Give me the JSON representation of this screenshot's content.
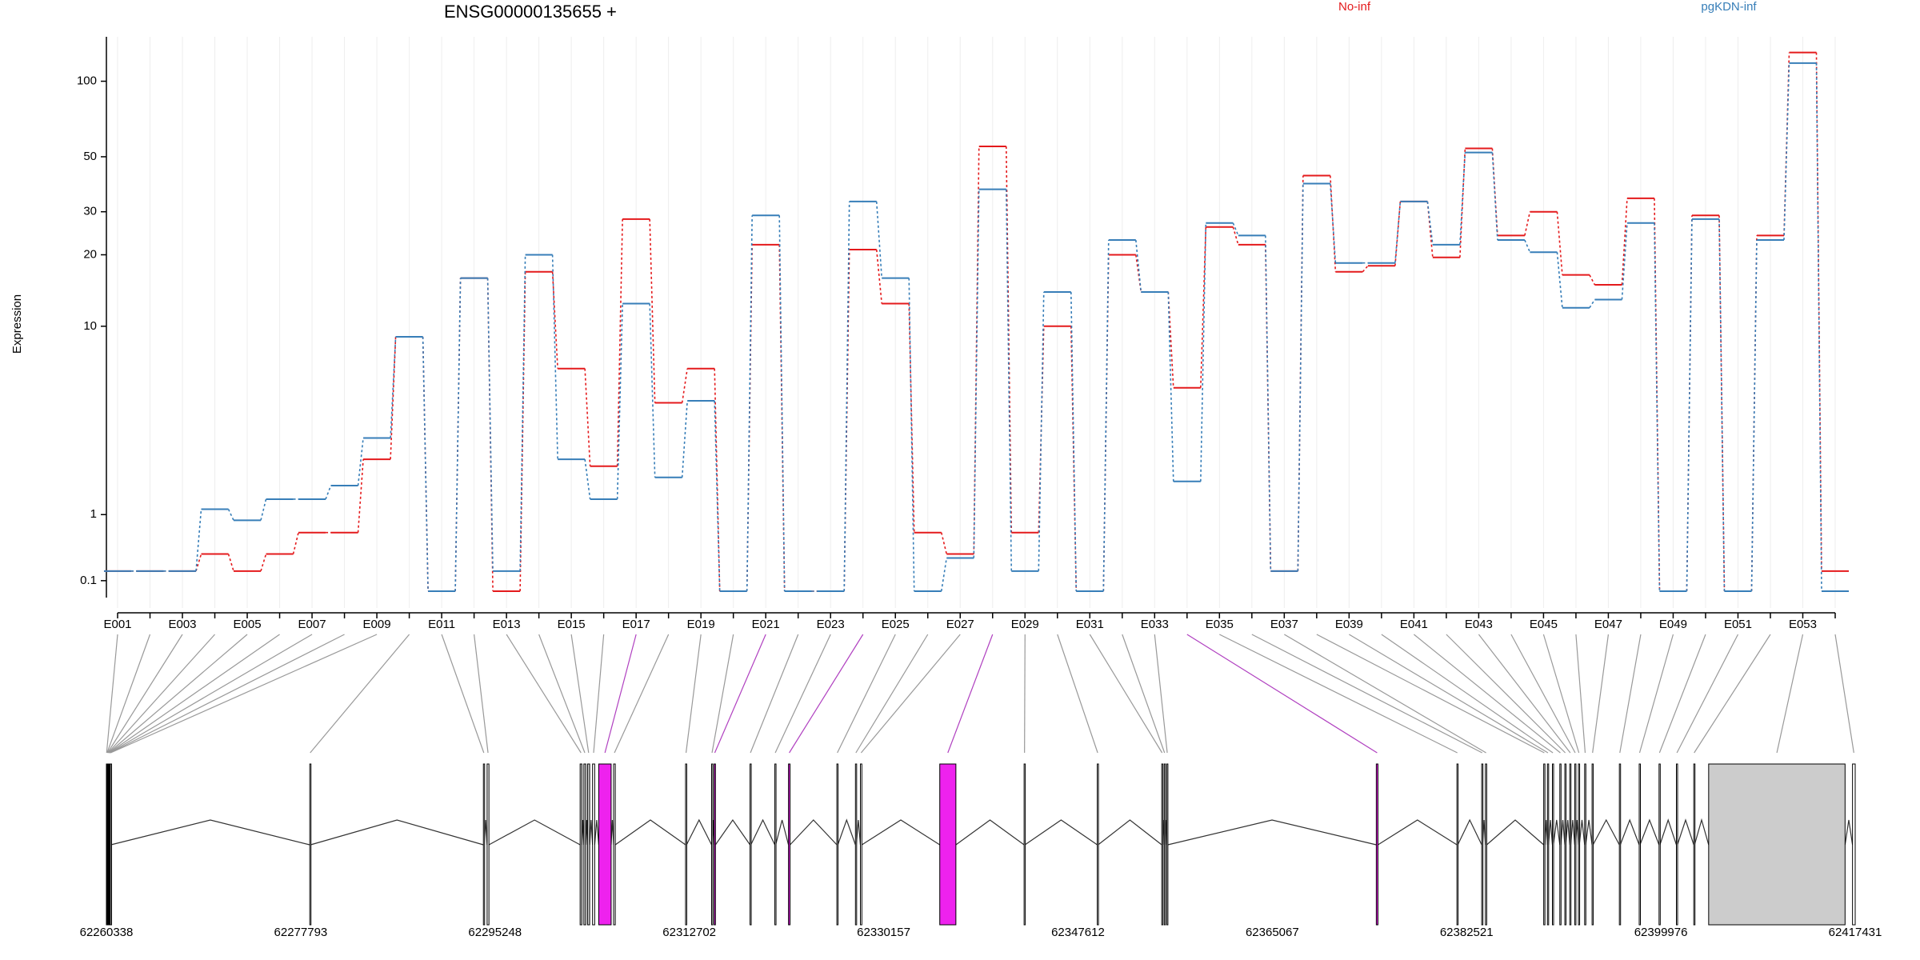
{
  "chart_data": {
    "type": "line",
    "title": "ENSG00000135655 +",
    "ylabel": "Expression",
    "yscale": "log1p",
    "grid": true,
    "categories": [
      "E001",
      null,
      "E003",
      null,
      "E005",
      null,
      "E007",
      null,
      "E009",
      null,
      "E011",
      null,
      "E013",
      null,
      "E015",
      null,
      "E017",
      null,
      "E019",
      null,
      "E021",
      null,
      "E023",
      null,
      "E025",
      null,
      "E027",
      null,
      "E029",
      null,
      "E031",
      null,
      "E033",
      null,
      "E035",
      null,
      "E037",
      null,
      "E039",
      null,
      "E041",
      null,
      "E043",
      null,
      "E045",
      null,
      "E047",
      null,
      "E049",
      null,
      "E051",
      null,
      "E053",
      null
    ],
    "series": [
      {
        "name": "No-inf",
        "color": "#e41a1c",
        "values": [
          0.2,
          0.2,
          0.2,
          0.4,
          0.2,
          0.4,
          0.7,
          0.7,
          2.3,
          9,
          0,
          16,
          0,
          17,
          6.5,
          2.1,
          28,
          4.5,
          6.5,
          0,
          22,
          0,
          0,
          21,
          12.5,
          0.7,
          0.4,
          55,
          0.7,
          10,
          0,
          20,
          14,
          5.3,
          26,
          22,
          0.2,
          42,
          17,
          18,
          33,
          19.5,
          54,
          24,
          30,
          16.5,
          15,
          34,
          0,
          29,
          0,
          24,
          130,
          0.2
        ]
      },
      {
        "name": "pgKDN-inf",
        "color": "#377eb8",
        "values": [
          0.2,
          0.2,
          0.2,
          1.1,
          0.9,
          1.3,
          1.3,
          1.6,
          3.0,
          9,
          0,
          16,
          0.2,
          20,
          2.3,
          1.3,
          12.5,
          1.8,
          4.6,
          0,
          29,
          0,
          0,
          33,
          16,
          0,
          0.35,
          37,
          0.2,
          14,
          0,
          23,
          14,
          1.7,
          27,
          24,
          0.2,
          39,
          18.5,
          18.5,
          33,
          22,
          52,
          23,
          20.5,
          12,
          13,
          27,
          0,
          28,
          0,
          23,
          118,
          0
        ]
      }
    ],
    "ylim": [
      0,
      150
    ],
    "yticks": [
      0.1,
      1,
      10,
      20,
      30,
      50,
      100
    ],
    "gene_model": {
      "xlim": [
        62260338,
        62417431
      ],
      "xticks": [
        62260338,
        62277793,
        62295248,
        62312702,
        62330157,
        62347612,
        62365067,
        62382521,
        62399976,
        62417431
      ],
      "exons": [
        {
          "start": 62260338,
          "end": 62260380,
          "color": "#ffffff"
        },
        {
          "start": 62260383,
          "end": 62260425,
          "color": "#ffffff"
        },
        {
          "start": 62260428,
          "end": 62260470,
          "color": "#ffffff"
        },
        {
          "start": 62260473,
          "end": 62260515,
          "color": "#ffffff"
        },
        {
          "start": 62260518,
          "end": 62260560,
          "color": "#ffffff"
        },
        {
          "start": 62260563,
          "end": 62260605,
          "color": "#ffffff"
        },
        {
          "start": 62260608,
          "end": 62260650,
          "color": "#ffffff"
        },
        {
          "start": 62260653,
          "end": 62260695,
          "color": "#ffffff"
        },
        {
          "start": 62260698,
          "end": 62260740,
          "color": "#ffffff"
        },
        {
          "start": 62278608,
          "end": 62278680,
          "color": "#ffffff"
        },
        {
          "start": 62294204,
          "end": 62294280,
          "color": "#ffffff"
        },
        {
          "start": 62294538,
          "end": 62294700,
          "color": "#ffffff"
        },
        {
          "start": 62302893,
          "end": 62303050,
          "color": "#cccccc"
        },
        {
          "start": 62303227,
          "end": 62303400,
          "color": "#cccccc"
        },
        {
          "start": 62303561,
          "end": 62303750,
          "color": "#cccccc"
        },
        {
          "start": 62304007,
          "end": 62304200,
          "color": "#ffffff"
        },
        {
          "start": 62304564,
          "end": 62305678,
          "color": "#ee22ee"
        },
        {
          "start": 62305901,
          "end": 62306050,
          "color": "#ffffff"
        },
        {
          "start": 62312362,
          "end": 62312450,
          "color": "#ffffff"
        },
        {
          "start": 62314701,
          "end": 62314780,
          "color": "#ffffff"
        },
        {
          "start": 62314924,
          "end": 62315050,
          "color": "#ee22ee"
        },
        {
          "start": 62318155,
          "end": 62318230,
          "color": "#ffffff"
        },
        {
          "start": 62320383,
          "end": 62320460,
          "color": "#ffffff"
        },
        {
          "start": 62321608,
          "end": 62321750,
          "color": "#ee22ee"
        },
        {
          "start": 62325953,
          "end": 62326040,
          "color": "#ffffff"
        },
        {
          "start": 62327624,
          "end": 62327700,
          "color": "#ffffff"
        },
        {
          "start": 62328069,
          "end": 62328200,
          "color": "#ffffff"
        },
        {
          "start": 62335199,
          "end": 62336647,
          "color": "#ee22ee"
        },
        {
          "start": 62342774,
          "end": 62342850,
          "color": "#ffffff"
        },
        {
          "start": 62349347,
          "end": 62349420,
          "color": "#ffffff"
        },
        {
          "start": 62355139,
          "end": 62355200,
          "color": "#ffffff"
        },
        {
          "start": 62355362,
          "end": 62355420,
          "color": "#ffffff"
        },
        {
          "start": 62355585,
          "end": 62355680,
          "color": "#ffffff"
        },
        {
          "start": 62374412,
          "end": 62374560,
          "color": "#ee22ee"
        },
        {
          "start": 62381653,
          "end": 62381730,
          "color": "#ffffff"
        },
        {
          "start": 62383881,
          "end": 62383960,
          "color": "#ffffff"
        },
        {
          "start": 62384215,
          "end": 62384330,
          "color": "#ffffff"
        },
        {
          "start": 62389451,
          "end": 62389560,
          "color": "#ffffff"
        },
        {
          "start": 62389785,
          "end": 62389880,
          "color": "#ffffff"
        },
        {
          "start": 62390231,
          "end": 62390320,
          "color": "#ffffff"
        },
        {
          "start": 62390899,
          "end": 62390990,
          "color": "#ffffff"
        },
        {
          "start": 62391345,
          "end": 62391430,
          "color": "#ffffff"
        },
        {
          "start": 62391791,
          "end": 62391880,
          "color": "#ffffff"
        },
        {
          "start": 62392237,
          "end": 62392320,
          "color": "#ffffff"
        },
        {
          "start": 62392571,
          "end": 62392650,
          "color": "#ffffff"
        },
        {
          "start": 62393127,
          "end": 62393220,
          "color": "#ffffff"
        },
        {
          "start": 62393795,
          "end": 62393880,
          "color": "#ffffff"
        },
        {
          "start": 62396246,
          "end": 62396330,
          "color": "#ffffff"
        },
        {
          "start": 62398028,
          "end": 62398100,
          "color": "#ffffff"
        },
        {
          "start": 62399811,
          "end": 62399890,
          "color": "#ffffff"
        },
        {
          "start": 62401370,
          "end": 62401460,
          "color": "#ffffff"
        },
        {
          "start": 62402930,
          "end": 62403000,
          "color": "#ffffff"
        },
        {
          "start": 62404267,
          "end": 62416521,
          "color": "#cccccc"
        },
        {
          "start": 62417189,
          "end": 62417431,
          "color": "#ffffff"
        }
      ]
    }
  }
}
